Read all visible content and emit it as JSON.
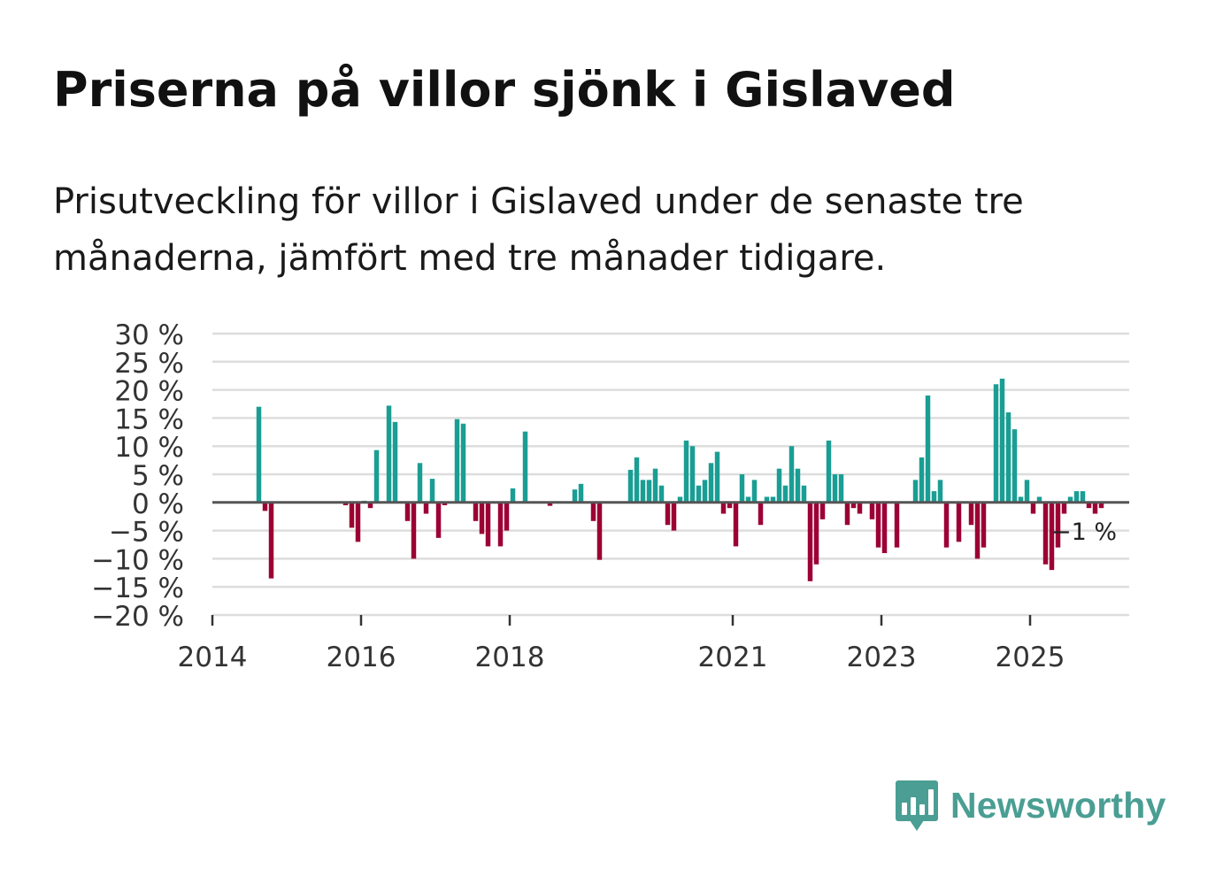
{
  "title": "Priserna på villor sjönk i Gislaved",
  "subtitle": "Prisutveckling för villor i Gislaved under de senaste tre månaderna, jämfört med tre månader tidigare.",
  "brand": {
    "name": "Newsworthy",
    "logo_icon": "bar-chart-speech-bubble-icon"
  },
  "colors": {
    "positive": "#1a9e94",
    "negative": "#9c0035",
    "grid": "#dddddd",
    "zero_line": "#555555",
    "axis_text": "#333333"
  },
  "chart_data": {
    "type": "bar",
    "title": "Priserna på villor sjönk i Gislaved",
    "xlabel": "",
    "ylabel": "",
    "ylim": [
      -20,
      30
    ],
    "y_ticks": [
      30,
      25,
      20,
      15,
      10,
      5,
      0,
      -5,
      -10,
      -15,
      -20
    ],
    "y_tick_labels": [
      "30 %",
      "25 %",
      "20 %",
      "15 %",
      "10 %",
      "5 %",
      "0 %",
      "−5 %",
      "−10 %",
      "−15 %",
      "−20 %"
    ],
    "x_range": [
      "2014-01",
      "2026-05"
    ],
    "x_ticks": [
      "2014",
      "2016",
      "2018",
      "2021",
      "2023",
      "2025"
    ],
    "last_value_label": "−1 %",
    "series": [
      {
        "name": "Prisutveckling",
        "points": [
          {
            "m": "2014-08",
            "v": 17
          },
          {
            "m": "2014-09",
            "v": -1.5
          },
          {
            "m": "2014-10",
            "v": -13.5
          },
          {
            "m": "2015-10",
            "v": -0.5
          },
          {
            "m": "2015-11",
            "v": -4.5
          },
          {
            "m": "2015-12",
            "v": -7
          },
          {
            "m": "2016-01",
            "v": 0.3
          },
          {
            "m": "2016-02",
            "v": -1
          },
          {
            "m": "2016-03",
            "v": 9.3
          },
          {
            "m": "2016-05",
            "v": 17.2
          },
          {
            "m": "2016-06",
            "v": 14.3
          },
          {
            "m": "2016-08",
            "v": -3.3
          },
          {
            "m": "2016-09",
            "v": -10
          },
          {
            "m": "2016-10",
            "v": 7
          },
          {
            "m": "2016-11",
            "v": -2
          },
          {
            "m": "2016-12",
            "v": 4.2
          },
          {
            "m": "2017-01",
            "v": -6.3
          },
          {
            "m": "2017-02",
            "v": -0.5
          },
          {
            "m": "2017-04",
            "v": 14.8
          },
          {
            "m": "2017-05",
            "v": 14
          },
          {
            "m": "2017-07",
            "v": -3.3
          },
          {
            "m": "2017-08",
            "v": -5.6
          },
          {
            "m": "2017-09",
            "v": -7.8
          },
          {
            "m": "2017-11",
            "v": -7.8
          },
          {
            "m": "2017-12",
            "v": -5
          },
          {
            "m": "2018-01",
            "v": 2.5
          },
          {
            "m": "2018-03",
            "v": 12.6
          },
          {
            "m": "2018-07",
            "v": -0.6
          },
          {
            "m": "2018-11",
            "v": 2.3
          },
          {
            "m": "2018-12",
            "v": 3.3
          },
          {
            "m": "2019-02",
            "v": -3.3
          },
          {
            "m": "2019-03",
            "v": -10.2
          },
          {
            "m": "2019-08",
            "v": 5.8
          },
          {
            "m": "2019-09",
            "v": 8
          },
          {
            "m": "2019-10",
            "v": 4
          },
          {
            "m": "2019-11",
            "v": 4
          },
          {
            "m": "2019-12",
            "v": 6
          },
          {
            "m": "2020-01",
            "v": 3
          },
          {
            "m": "2020-02",
            "v": -4
          },
          {
            "m": "2020-03",
            "v": -5
          },
          {
            "m": "2020-04",
            "v": 1
          },
          {
            "m": "2020-05",
            "v": 11
          },
          {
            "m": "2020-06",
            "v": 10
          },
          {
            "m": "2020-07",
            "v": 3
          },
          {
            "m": "2020-08",
            "v": 4
          },
          {
            "m": "2020-09",
            "v": 7
          },
          {
            "m": "2020-10",
            "v": 9
          },
          {
            "m": "2020-11",
            "v": -2
          },
          {
            "m": "2020-12",
            "v": -1
          },
          {
            "m": "2021-01",
            "v": -7.8
          },
          {
            "m": "2021-02",
            "v": 5
          },
          {
            "m": "2021-03",
            "v": 1
          },
          {
            "m": "2021-04",
            "v": 4
          },
          {
            "m": "2021-05",
            "v": -4
          },
          {
            "m": "2021-06",
            "v": 1
          },
          {
            "m": "2021-07",
            "v": 1
          },
          {
            "m": "2021-08",
            "v": 6
          },
          {
            "m": "2021-09",
            "v": 3
          },
          {
            "m": "2021-10",
            "v": 10
          },
          {
            "m": "2021-11",
            "v": 6
          },
          {
            "m": "2021-12",
            "v": 3
          },
          {
            "m": "2022-01",
            "v": -14
          },
          {
            "m": "2022-02",
            "v": -11
          },
          {
            "m": "2022-03",
            "v": -3
          },
          {
            "m": "2022-04",
            "v": 11
          },
          {
            "m": "2022-05",
            "v": 5
          },
          {
            "m": "2022-06",
            "v": 5
          },
          {
            "m": "2022-07",
            "v": -4
          },
          {
            "m": "2022-08",
            "v": -1
          },
          {
            "m": "2022-09",
            "v": -2
          },
          {
            "m": "2022-11",
            "v": -3
          },
          {
            "m": "2022-12",
            "v": -8
          },
          {
            "m": "2023-01",
            "v": -9
          },
          {
            "m": "2023-03",
            "v": -8
          },
          {
            "m": "2023-06",
            "v": 4
          },
          {
            "m": "2023-07",
            "v": 8
          },
          {
            "m": "2023-08",
            "v": 19
          },
          {
            "m": "2023-09",
            "v": 2
          },
          {
            "m": "2023-10",
            "v": 4
          },
          {
            "m": "2023-11",
            "v": -8
          },
          {
            "m": "2024-01",
            "v": -7
          },
          {
            "m": "2024-03",
            "v": -4
          },
          {
            "m": "2024-04",
            "v": -10
          },
          {
            "m": "2024-05",
            "v": -8
          },
          {
            "m": "2024-07",
            "v": 21
          },
          {
            "m": "2024-08",
            "v": 22
          },
          {
            "m": "2024-09",
            "v": 16
          },
          {
            "m": "2024-10",
            "v": 13
          },
          {
            "m": "2024-11",
            "v": 1
          },
          {
            "m": "2024-12",
            "v": 4
          },
          {
            "m": "2025-01",
            "v": -2
          },
          {
            "m": "2025-02",
            "v": 1
          },
          {
            "m": "2025-03",
            "v": -11
          },
          {
            "m": "2025-04",
            "v": -12
          },
          {
            "m": "2025-05",
            "v": -8
          },
          {
            "m": "2025-06",
            "v": -2
          },
          {
            "m": "2025-07",
            "v": 1
          },
          {
            "m": "2025-08",
            "v": 2
          },
          {
            "m": "2025-09",
            "v": 2
          },
          {
            "m": "2025-10",
            "v": -1
          },
          {
            "m": "2025-11",
            "v": -2
          },
          {
            "m": "2025-12",
            "v": -1
          }
        ]
      }
    ]
  }
}
